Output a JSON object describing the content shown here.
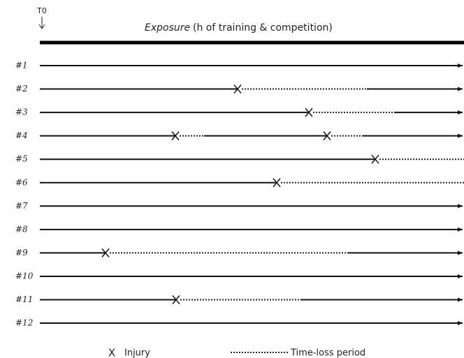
{
  "header": {
    "t0": "T0",
    "exposure": "Exposure",
    "exposure_detail": "(h of training & competition)"
  },
  "rows": [
    {
      "label": "#1"
    },
    {
      "label": "#2"
    },
    {
      "label": "#3"
    },
    {
      "label": "#4"
    },
    {
      "label": "#5"
    },
    {
      "label": "#6"
    },
    {
      "label": "#7"
    },
    {
      "label": "#8"
    },
    {
      "label": "#9"
    },
    {
      "label": "#10"
    },
    {
      "label": "#11"
    },
    {
      "label": "#12"
    }
  ],
  "legend": {
    "injury_symbol": "X",
    "injury": "Injury",
    "time_loss": "Time-loss period"
  }
}
